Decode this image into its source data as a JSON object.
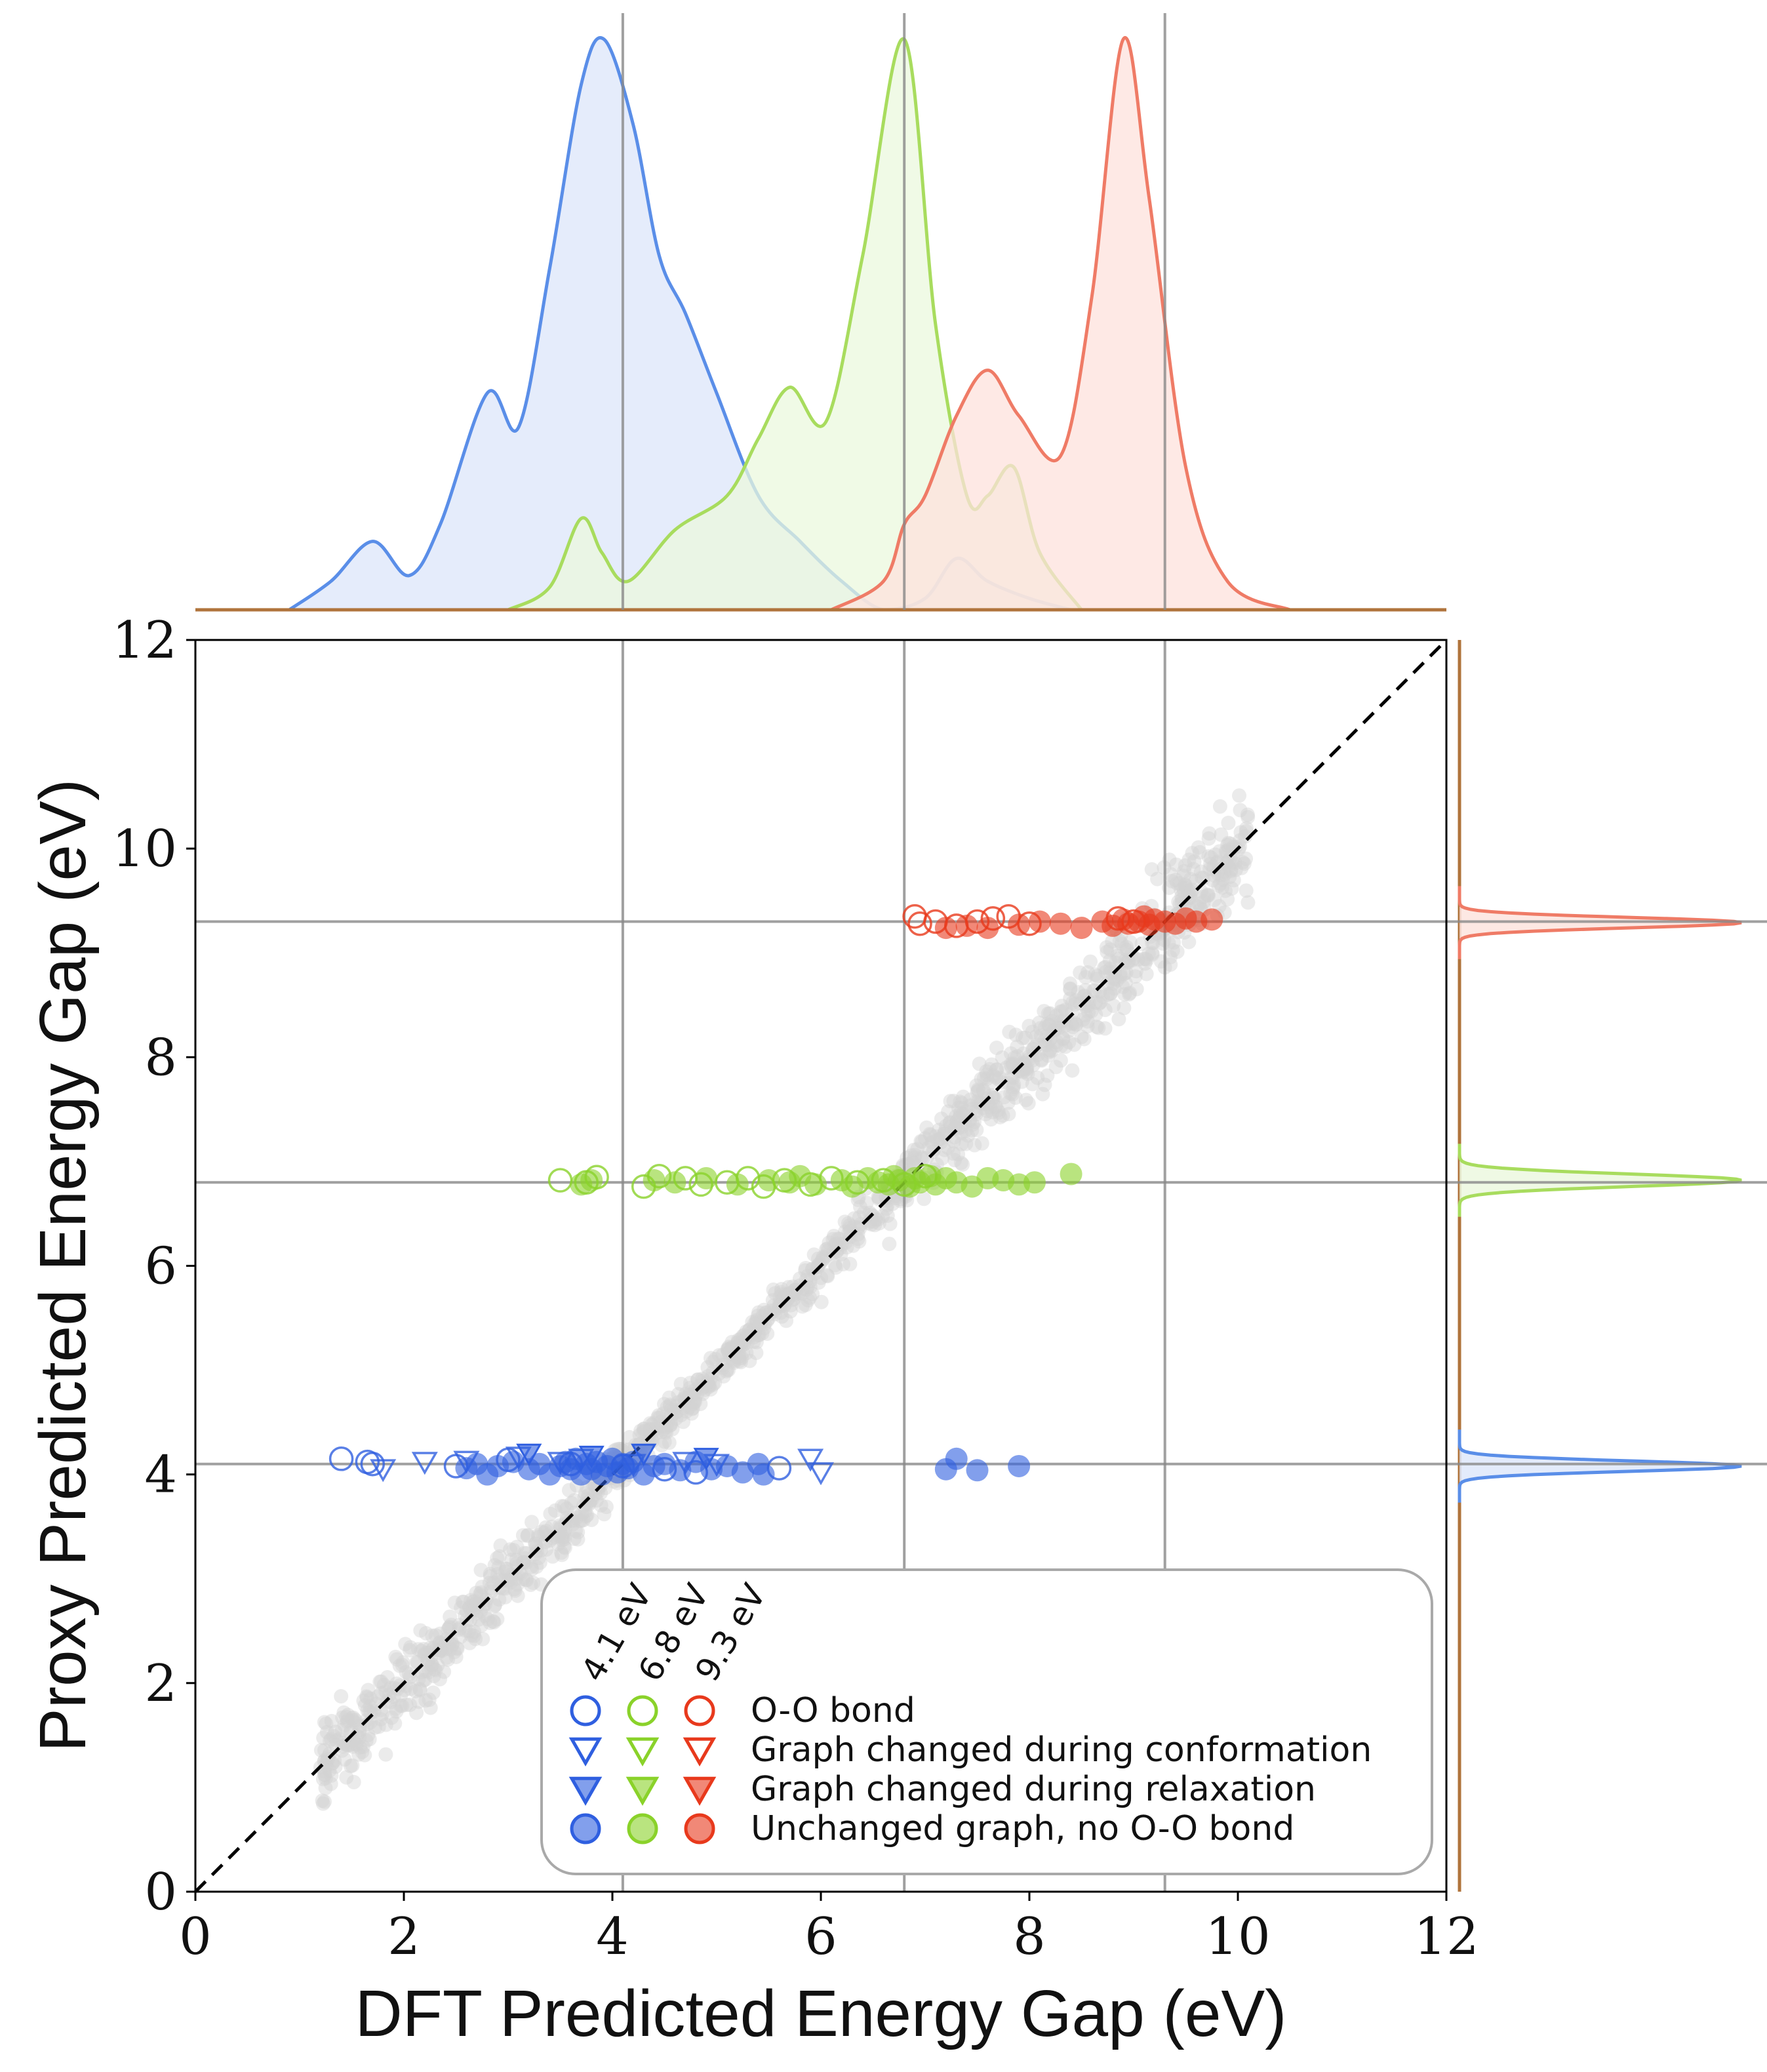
{
  "chart_data": {
    "type": "scatter",
    "xlabel": "DFT Predicted Energy Gap (eV)",
    "ylabel": "Proxy Predicted Energy Gap (eV)",
    "xlim": [
      0,
      12
    ],
    "ylim": [
      0,
      12
    ],
    "x_ticks": [
      "0",
      "2",
      "4",
      "6",
      "8",
      "10",
      "12"
    ],
    "y_ticks": [
      "0",
      "2",
      "4",
      "6",
      "8",
      "10",
      "12"
    ],
    "reference_gaps": [
      4.1,
      6.8,
      9.3
    ],
    "identity_line": "y = x (dashed)",
    "colors": {
      "blue": "#2f5fe0",
      "green": "#8ad22a",
      "red": "#e8391c",
      "gray": "#d3d3d3"
    },
    "legend": {
      "columns": [
        "4.1 eV",
        "6.8 eV",
        "9.3 eV"
      ],
      "rows": [
        "O-O bond",
        "Graph changed during conformation",
        "Graph changed during relaxation",
        "Unchanged graph, no O-O bond"
      ]
    },
    "series": [
      {
        "name": "4.1 eV",
        "color": "#2f5fe0",
        "oo_bond": [
          [
            1.4,
            4.15
          ],
          [
            1.65,
            4.12
          ],
          [
            1.7,
            4.1
          ],
          [
            2.5,
            4.08
          ],
          [
            3.0,
            4.14
          ],
          [
            3.6,
            4.1
          ],
          [
            4.1,
            4.08
          ],
          [
            4.5,
            4.05
          ],
          [
            4.8,
            4.02
          ],
          [
            5.6,
            4.06
          ]
        ],
        "graph_conformation": [
          [
            1.8,
            4.05
          ],
          [
            2.2,
            4.12
          ],
          [
            2.6,
            4.13
          ],
          [
            3.1,
            4.17
          ],
          [
            3.5,
            4.12
          ],
          [
            3.7,
            4.15
          ],
          [
            4.2,
            4.1
          ],
          [
            4.7,
            4.12
          ],
          [
            5.0,
            4.1
          ],
          [
            5.9,
            4.15
          ],
          [
            6.0,
            4.02
          ]
        ],
        "graph_relaxation": [
          [
            3.2,
            4.2
          ],
          [
            3.8,
            4.18
          ],
          [
            4.3,
            4.2
          ],
          [
            4.9,
            4.16
          ]
        ],
        "unchanged": [
          [
            2.6,
            4.06
          ],
          [
            2.7,
            4.1
          ],
          [
            2.8,
            4.0
          ],
          [
            2.9,
            4.08
          ],
          [
            3.05,
            4.12
          ],
          [
            3.2,
            4.05
          ],
          [
            3.3,
            4.1
          ],
          [
            3.4,
            4.0
          ],
          [
            3.5,
            4.08
          ],
          [
            3.55,
            4.12
          ],
          [
            3.6,
            4.05
          ],
          [
            3.65,
            4.15
          ],
          [
            3.7,
            4.0
          ],
          [
            3.75,
            4.1
          ],
          [
            3.8,
            4.05
          ],
          [
            3.85,
            4.12
          ],
          [
            3.9,
            4.0
          ],
          [
            3.95,
            4.08
          ],
          [
            4.0,
            4.15
          ],
          [
            4.05,
            4.02
          ],
          [
            4.1,
            4.1
          ],
          [
            4.15,
            4.06
          ],
          [
            4.2,
            4.12
          ],
          [
            4.3,
            4.0
          ],
          [
            4.4,
            4.08
          ],
          [
            4.5,
            4.1
          ],
          [
            4.65,
            4.04
          ],
          [
            4.8,
            4.12
          ],
          [
            4.95,
            4.05
          ],
          [
            5.1,
            4.08
          ],
          [
            5.25,
            4.02
          ],
          [
            5.4,
            4.1
          ],
          [
            5.45,
            4.0
          ],
          [
            7.2,
            4.05
          ],
          [
            7.3,
            4.15
          ],
          [
            7.5,
            4.04
          ],
          [
            7.9,
            4.08
          ]
        ]
      },
      {
        "name": "6.8 eV",
        "color": "#8ad22a",
        "oo_bond": [
          [
            3.5,
            6.82
          ],
          [
            3.75,
            6.8
          ],
          [
            3.85,
            6.85
          ],
          [
            4.3,
            6.76
          ],
          [
            4.45,
            6.86
          ],
          [
            4.7,
            6.84
          ],
          [
            4.85,
            6.78
          ],
          [
            5.1,
            6.8
          ],
          [
            5.3,
            6.84
          ],
          [
            5.45,
            6.76
          ],
          [
            5.65,
            6.82
          ],
          [
            5.9,
            6.78
          ],
          [
            6.1,
            6.84
          ],
          [
            6.35,
            6.8
          ],
          [
            6.6,
            6.82
          ],
          [
            6.8,
            6.78
          ],
          [
            7.0,
            6.86
          ]
        ],
        "graph_conformation": [],
        "graph_relaxation": [],
        "unchanged": [
          [
            3.7,
            6.78
          ],
          [
            3.8,
            6.82
          ],
          [
            4.4,
            6.82
          ],
          [
            4.6,
            6.8
          ],
          [
            4.9,
            6.84
          ],
          [
            5.2,
            6.78
          ],
          [
            5.5,
            6.82
          ],
          [
            5.7,
            6.8
          ],
          [
            5.8,
            6.86
          ],
          [
            5.95,
            6.78
          ],
          [
            6.2,
            6.82
          ],
          [
            6.3,
            6.76
          ],
          [
            6.45,
            6.84
          ],
          [
            6.55,
            6.8
          ],
          [
            6.65,
            6.78
          ],
          [
            6.7,
            6.86
          ],
          [
            6.75,
            6.82
          ],
          [
            6.85,
            6.76
          ],
          [
            6.9,
            6.84
          ],
          [
            6.95,
            6.8
          ],
          [
            7.05,
            6.86
          ],
          [
            7.1,
            6.78
          ],
          [
            7.2,
            6.84
          ],
          [
            7.3,
            6.8
          ],
          [
            7.45,
            6.76
          ],
          [
            7.6,
            6.84
          ],
          [
            7.75,
            6.82
          ],
          [
            7.9,
            6.78
          ],
          [
            8.05,
            6.8
          ],
          [
            8.4,
            6.88
          ]
        ]
      },
      {
        "name": "9.3 eV",
        "color": "#e8391c",
        "oo_bond": [
          [
            6.9,
            9.35
          ],
          [
            6.95,
            9.28
          ],
          [
            7.1,
            9.3
          ],
          [
            7.3,
            9.26
          ],
          [
            7.5,
            9.3
          ],
          [
            7.65,
            9.33
          ],
          [
            7.8,
            9.35
          ],
          [
            8.0,
            9.28
          ],
          [
            8.85,
            9.33
          ],
          [
            9.0,
            9.3
          ]
        ],
        "graph_conformation": [],
        "graph_relaxation": [],
        "unchanged": [
          [
            7.2,
            9.24
          ],
          [
            7.4,
            9.26
          ],
          [
            7.6,
            9.24
          ],
          [
            7.9,
            9.27
          ],
          [
            8.1,
            9.3
          ],
          [
            8.3,
            9.28
          ],
          [
            8.5,
            9.24
          ],
          [
            8.7,
            9.3
          ],
          [
            8.8,
            9.26
          ],
          [
            8.9,
            9.32
          ],
          [
            8.95,
            9.28
          ],
          [
            9.05,
            9.3
          ],
          [
            9.1,
            9.35
          ],
          [
            9.15,
            9.27
          ],
          [
            9.2,
            9.32
          ],
          [
            9.3,
            9.3
          ],
          [
            9.4,
            9.28
          ],
          [
            9.5,
            9.33
          ],
          [
            9.6,
            9.3
          ],
          [
            9.75,
            9.32
          ]
        ]
      }
    ],
    "marginal_x_density": [
      {
        "name": "4.1 eV",
        "color": "#5a8ee8",
        "fill": "#dce6fa",
        "points": [
          [
            0.9,
            0
          ],
          [
            1.3,
            0.05
          ],
          [
            1.7,
            0.12
          ],
          [
            2.05,
            0.06
          ],
          [
            2.35,
            0.15
          ],
          [
            2.8,
            0.38
          ],
          [
            3.1,
            0.32
          ],
          [
            3.4,
            0.6
          ],
          [
            3.7,
            0.92
          ],
          [
            3.92,
            1.0
          ],
          [
            4.2,
            0.85
          ],
          [
            4.45,
            0.62
          ],
          [
            4.7,
            0.52
          ],
          [
            5.0,
            0.38
          ],
          [
            5.4,
            0.2
          ],
          [
            5.8,
            0.12
          ],
          [
            6.2,
            0.05
          ],
          [
            6.6,
            0.0
          ],
          [
            7.0,
            0.02
          ],
          [
            7.3,
            0.09
          ],
          [
            7.6,
            0.05
          ],
          [
            8.0,
            0.02
          ],
          [
            8.4,
            0.0
          ]
        ]
      },
      {
        "name": "6.8 eV",
        "color": "#a8dc5e",
        "fill": "#ebf8dd",
        "points": [
          [
            3.0,
            0
          ],
          [
            3.4,
            0.04
          ],
          [
            3.7,
            0.16
          ],
          [
            3.9,
            0.1
          ],
          [
            4.15,
            0.05
          ],
          [
            4.6,
            0.14
          ],
          [
            5.1,
            0.2
          ],
          [
            5.4,
            0.3
          ],
          [
            5.7,
            0.39
          ],
          [
            6.05,
            0.33
          ],
          [
            6.4,
            0.62
          ],
          [
            6.8,
            1.0
          ],
          [
            7.1,
            0.5
          ],
          [
            7.4,
            0.2
          ],
          [
            7.6,
            0.2
          ],
          [
            7.85,
            0.25
          ],
          [
            8.1,
            0.1
          ],
          [
            8.5,
            0.0
          ]
        ]
      },
      {
        "name": "9.3 eV",
        "color": "#ef7b66",
        "fill": "#fde2dc",
        "points": [
          [
            6.1,
            0
          ],
          [
            6.6,
            0.05
          ],
          [
            6.8,
            0.15
          ],
          [
            7.0,
            0.2
          ],
          [
            7.3,
            0.34
          ],
          [
            7.6,
            0.42
          ],
          [
            7.9,
            0.34
          ],
          [
            8.3,
            0.27
          ],
          [
            8.6,
            0.55
          ],
          [
            8.9,
            1.0
          ],
          [
            9.15,
            0.72
          ],
          [
            9.5,
            0.25
          ],
          [
            9.9,
            0.05
          ],
          [
            10.5,
            0.0
          ]
        ]
      }
    ],
    "marginal_y_density": [
      {
        "name": "4.1 eV",
        "color": "#5a8ee8",
        "fill": "#dce6fa",
        "center": 4.08,
        "width": 0.05
      },
      {
        "name": "6.8 eV",
        "color": "#a8dc5e",
        "fill": "#ebf8dd",
        "center": 6.82,
        "width": 0.06
      },
      {
        "name": "9.3 eV",
        "color": "#ef7b66",
        "fill": "#fde2dc",
        "center": 9.29,
        "width": 0.05
      }
    ]
  }
}
